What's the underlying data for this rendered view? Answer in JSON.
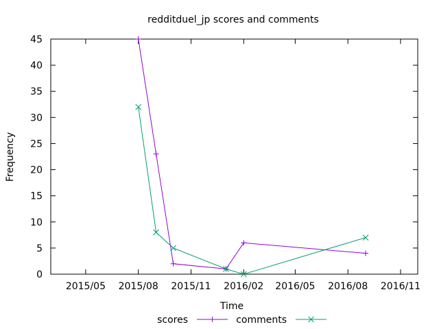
{
  "chart_data": {
    "type": "line",
    "title": "redditduel_jp scores and comments",
    "xlabel": "Time",
    "ylabel": "Frequency",
    "ylim": [
      0,
      45
    ],
    "yticks": [
      0,
      5,
      10,
      15,
      20,
      25,
      30,
      35,
      40,
      45
    ],
    "xlim": [
      "2015-03-01",
      "2016-12-01"
    ],
    "xticks": [
      {
        "value": "2015-05-01",
        "label": "2015/05"
      },
      {
        "value": "2015-08-01",
        "label": "2015/08"
      },
      {
        "value": "2015-11-01",
        "label": "2015/11"
      },
      {
        "value": "2016-02-01",
        "label": "2016/02"
      },
      {
        "value": "2016-05-01",
        "label": "2016/05"
      },
      {
        "value": "2016-08-01",
        "label": "2016/08"
      },
      {
        "value": "2016-11-01",
        "label": "2016/11"
      }
    ],
    "grid": false,
    "legend_position": "bottom-center",
    "series": [
      {
        "name": "scores",
        "color": "#9400d3",
        "marker": "plus",
        "x": [
          "2015-08-01",
          "2015-09-01",
          "2015-10-01",
          "2016-01-01",
          "2016-02-01",
          "2016-09-01"
        ],
        "y": [
          45,
          23,
          2,
          1,
          6,
          4
        ]
      },
      {
        "name": "comments",
        "color": "#009e73",
        "marker": "cross",
        "x": [
          "2015-08-01",
          "2015-09-01",
          "2015-10-01",
          "2016-01-01",
          "2016-02-01",
          "2016-09-01"
        ],
        "y": [
          32,
          8,
          5,
          1,
          0,
          7
        ]
      }
    ]
  }
}
